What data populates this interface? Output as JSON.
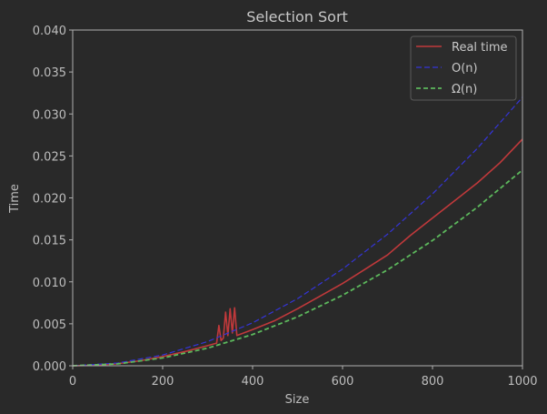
{
  "chart_data": {
    "type": "line",
    "title": "Selection Sort",
    "xlabel": "Size",
    "ylabel": "Time",
    "xlim": [
      0,
      1000
    ],
    "ylim": [
      0,
      0.04
    ],
    "xticks": [
      "0",
      "200",
      "400",
      "600",
      "800",
      "1000"
    ],
    "yticks": [
      "0.000",
      "0.005",
      "0.010",
      "0.015",
      "0.020",
      "0.025",
      "0.030",
      "0.035",
      "0.040"
    ],
    "grid": false,
    "legend_position": "top-right",
    "colors": {
      "background": "#292929",
      "axes": "#b0b0b0",
      "real_time": "#c0393b",
      "big_o": "#3434d8",
      "omega": "#5cb85c"
    },
    "series": [
      {
        "name": "Real time",
        "style": "solid",
        "x": [
          0,
          50,
          100,
          150,
          200,
          250,
          300,
          320,
          325,
          330,
          335,
          340,
          345,
          350,
          355,
          360,
          365,
          400,
          450,
          500,
          550,
          600,
          650,
          700,
          750,
          800,
          850,
          900,
          950,
          1000
        ],
        "y": [
          0.0,
          6e-05,
          0.00025,
          0.0006,
          0.0011,
          0.0017,
          0.0024,
          0.0027,
          0.0048,
          0.003,
          0.0033,
          0.0064,
          0.0036,
          0.0068,
          0.0039,
          0.0069,
          0.0036,
          0.0043,
          0.0054,
          0.0068,
          0.0083,
          0.0098,
          0.0115,
          0.0132,
          0.0155,
          0.0176,
          0.0197,
          0.0218,
          0.0242,
          0.027
        ]
      },
      {
        "name": "O(n)",
        "legend_label": "O(n)",
        "style": "dashed",
        "x": [
          0,
          100,
          200,
          300,
          400,
          500,
          600,
          700,
          800,
          900,
          1000
        ],
        "y": [
          0.0,
          0.00032,
          0.00128,
          0.00288,
          0.00512,
          0.008,
          0.01152,
          0.01568,
          0.02048,
          0.02592,
          0.032
        ]
      },
      {
        "name": "Ω(n)",
        "legend_label": "Ω(n)",
        "style": "dashed",
        "x": [
          0,
          100,
          200,
          300,
          400,
          500,
          600,
          700,
          800,
          900,
          1000
        ],
        "y": [
          0.0,
          0.00023,
          0.00093,
          0.0021,
          0.00373,
          0.00583,
          0.0084,
          0.01143,
          0.01493,
          0.0189,
          0.02333
        ]
      }
    ]
  }
}
